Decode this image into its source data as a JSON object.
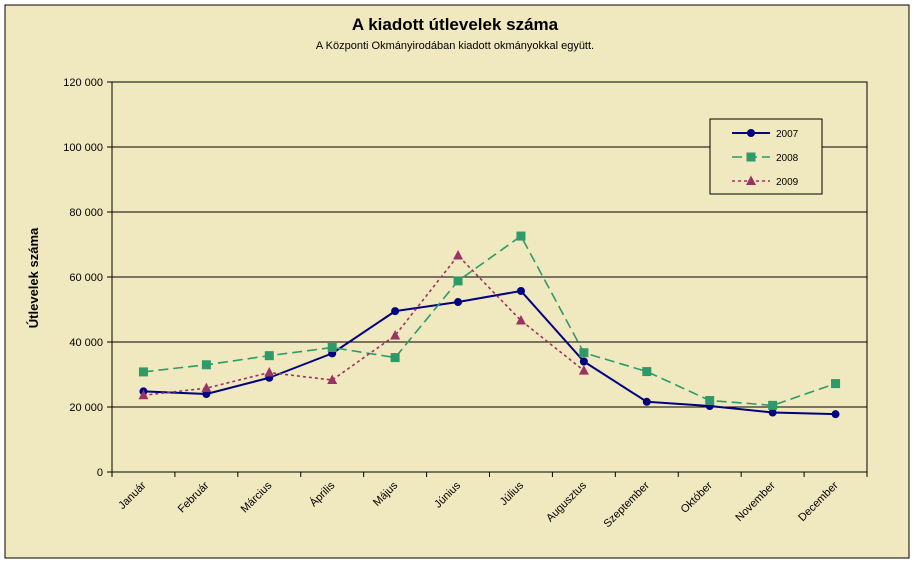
{
  "chart_data": {
    "type": "line",
    "title": "A  kiadott útlevelek száma",
    "subtitle": "A Központi Okmányirodában kiadott okmányokkal együtt.",
    "xlabel": "",
    "ylabel": "Útlevelek száma",
    "categories": [
      "Január",
      "Február",
      "Március",
      "Április",
      "Május",
      "Június",
      "Július",
      "Augusztus",
      "Szeptember",
      "Október",
      "November",
      "December"
    ],
    "ylim": [
      0,
      120000
    ],
    "yticks": [
      0,
      20000,
      40000,
      60000,
      80000,
      100000,
      120000
    ],
    "ytick_labels": [
      "0",
      "20 000",
      "40 000",
      "60 000",
      "80 000",
      "100 000",
      "120 000"
    ],
    "grid": true,
    "legend_position": "top-right",
    "series": [
      {
        "name": "2007",
        "color": "#000080",
        "marker": "circle",
        "dash": "solid",
        "values": [
          24800,
          24000,
          29000,
          36500,
          49500,
          52300,
          55700,
          34000,
          21600,
          20300,
          18300,
          17800
        ]
      },
      {
        "name": "2008",
        "color": "#2E9A6A",
        "marker": "square",
        "dash": "long-dash",
        "values": [
          30800,
          33000,
          35800,
          38300,
          35200,
          58800,
          72600,
          36700,
          30900,
          22000,
          20500,
          27200
        ]
      },
      {
        "name": "2009",
        "color": "#993366",
        "marker": "triangle",
        "dash": "dotted",
        "values": [
          23600,
          25800,
          30600,
          28300,
          42000,
          66600,
          46600,
          31200,
          null,
          null,
          null,
          null
        ]
      }
    ],
    "colors": {
      "page_bg": "#F0E8BE",
      "plot_bg": "#F0E8BE",
      "grid": "#000000",
      "axis": "#000000"
    }
  }
}
